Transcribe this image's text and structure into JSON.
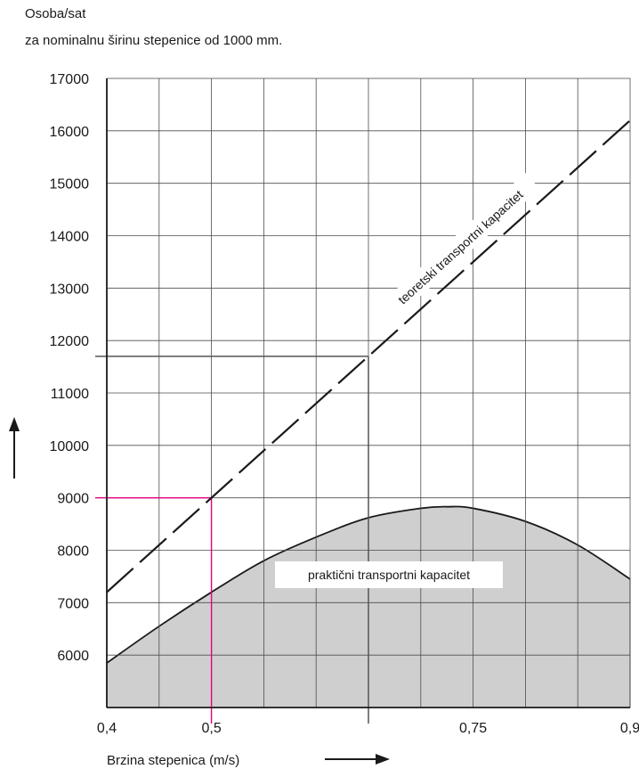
{
  "chart_data": {
    "type": "line",
    "title_line1": "Osoba/sat",
    "title_line2": "za nominalnu širinu stepenice od 1000 mm.",
    "xlabel": "Brzina stepenica (m/s)",
    "ylabel": "",
    "xlim": [
      0.4,
      0.9
    ],
    "ylim": [
      5000,
      17000
    ],
    "x_ticks": [
      {
        "value": 0.4,
        "label": "0,4",
        "highlight": false
      },
      {
        "value": 0.5,
        "label": "0,5",
        "highlight": true
      },
      {
        "value": 0.75,
        "label": "0,75",
        "highlight": false
      },
      {
        "value": 0.9,
        "label": "0,9",
        "highlight": false
      }
    ],
    "y_ticks": [
      {
        "value": 6000,
        "label": "6000",
        "highlight": false
      },
      {
        "value": 7000,
        "label": "7000",
        "highlight": false
      },
      {
        "value": 8000,
        "label": "8000",
        "highlight": false
      },
      {
        "value": 9000,
        "label": "9000",
        "highlight": true
      },
      {
        "value": 10000,
        "label": "10000",
        "highlight": false
      },
      {
        "value": 11000,
        "label": "11000",
        "highlight": false
      },
      {
        "value": 12000,
        "label": "12000",
        "highlight": false
      },
      {
        "value": 13000,
        "label": "13000",
        "highlight": false
      },
      {
        "value": 14000,
        "label": "14000",
        "highlight": false
      },
      {
        "value": 15000,
        "label": "15000",
        "highlight": false
      },
      {
        "value": 16000,
        "label": "16000",
        "highlight": false
      },
      {
        "value": 17000,
        "label": "17000",
        "highlight": false
      }
    ],
    "x_gridlines": [
      0.45,
      0.5,
      0.55,
      0.6,
      0.65,
      0.7,
      0.75,
      0.8,
      0.85
    ],
    "y_gridlines": [
      6000,
      7000,
      8000,
      9000,
      10000,
      11000,
      12000,
      13000,
      14000,
      15000,
      16000
    ],
    "grid": true,
    "series": [
      {
        "name": "teoretski transportni kapacitet",
        "style": "dashed",
        "color": "#1a1a1a",
        "x": [
          0.4,
          0.9
        ],
        "y": [
          7200,
          16200
        ]
      },
      {
        "name": "praktični transportni kapacitet",
        "style": "filled-area",
        "color": "#1a1a1a",
        "fill": "#cfcfcf",
        "x": [
          0.4,
          0.45,
          0.5,
          0.55,
          0.6,
          0.65,
          0.7,
          0.725,
          0.75,
          0.8,
          0.85,
          0.9
        ],
        "y": [
          5850,
          6550,
          7200,
          7800,
          8250,
          8620,
          8800,
          8830,
          8800,
          8550,
          8100,
          7450
        ]
      }
    ],
    "reference_lines": [
      {
        "x": 0.65,
        "y": 11700,
        "color": "#555555"
      },
      {
        "x": 0.5,
        "y": 9000,
        "color": "#e6007e"
      }
    ],
    "arrows": [
      "up",
      "right"
    ],
    "colors": {
      "highlight": "#e6007e",
      "grid": "#4d4d4d",
      "reference": "#555555",
      "fill": "#cfcfcf",
      "text": "#1a1a1a"
    }
  }
}
